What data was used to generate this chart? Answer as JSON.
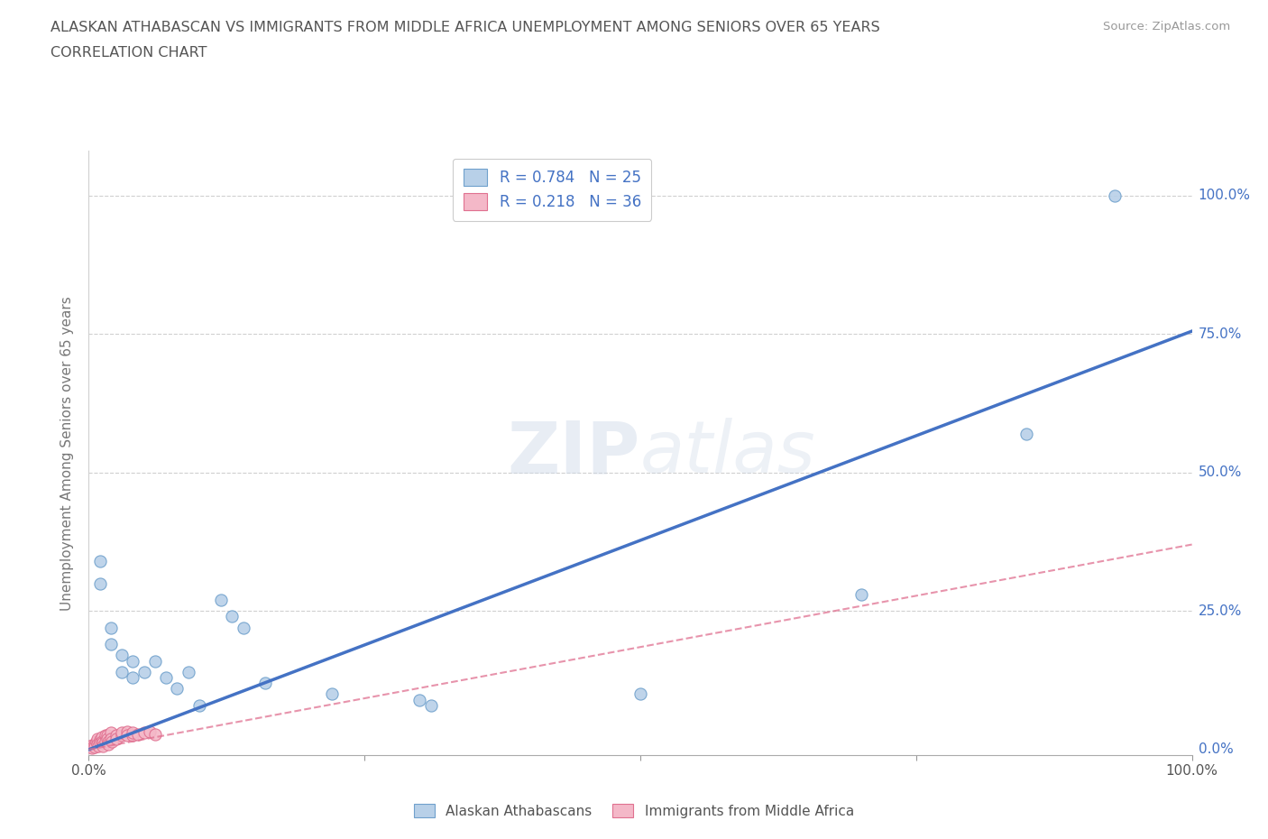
{
  "title_line1": "ALASKAN ATHABASCAN VS IMMIGRANTS FROM MIDDLE AFRICA UNEMPLOYMENT AMONG SENIORS OVER 65 YEARS",
  "title_line2": "CORRELATION CHART",
  "source_text": "Source: ZipAtlas.com",
  "ylabel": "Unemployment Among Seniors over 65 years",
  "watermark": "ZIPatlas",
  "blue_R": 0.784,
  "blue_N": 25,
  "pink_R": 0.218,
  "pink_N": 36,
  "blue_color": "#b8d0e8",
  "blue_edge_color": "#6fa0cc",
  "blue_line_color": "#4472c4",
  "pink_color": "#f4b8c8",
  "pink_edge_color": "#e07090",
  "pink_line_color": "#e07090",
  "blue_scatter": [
    [
      0.01,
      0.34
    ],
    [
      0.01,
      0.3
    ],
    [
      0.02,
      0.22
    ],
    [
      0.02,
      0.19
    ],
    [
      0.03,
      0.17
    ],
    [
      0.03,
      0.14
    ],
    [
      0.04,
      0.16
    ],
    [
      0.04,
      0.13
    ],
    [
      0.05,
      0.14
    ],
    [
      0.06,
      0.16
    ],
    [
      0.07,
      0.13
    ],
    [
      0.08,
      0.11
    ],
    [
      0.09,
      0.14
    ],
    [
      0.1,
      0.08
    ],
    [
      0.12,
      0.27
    ],
    [
      0.13,
      0.24
    ],
    [
      0.14,
      0.22
    ],
    [
      0.16,
      0.12
    ],
    [
      0.22,
      0.1
    ],
    [
      0.3,
      0.09
    ],
    [
      0.31,
      0.08
    ],
    [
      0.5,
      0.1
    ],
    [
      0.7,
      0.28
    ],
    [
      0.85,
      0.57
    ],
    [
      0.93,
      1.0
    ]
  ],
  "pink_scatter": [
    [
      0.002,
      0.005
    ],
    [
      0.003,
      0.008
    ],
    [
      0.003,
      0.003
    ],
    [
      0.005,
      0.01
    ],
    [
      0.005,
      0.005
    ],
    [
      0.007,
      0.015
    ],
    [
      0.008,
      0.02
    ],
    [
      0.008,
      0.01
    ],
    [
      0.009,
      0.007
    ],
    [
      0.01,
      0.018
    ],
    [
      0.01,
      0.012
    ],
    [
      0.012,
      0.022
    ],
    [
      0.012,
      0.015
    ],
    [
      0.013,
      0.012
    ],
    [
      0.013,
      0.007
    ],
    [
      0.015,
      0.025
    ],
    [
      0.015,
      0.015
    ],
    [
      0.017,
      0.025
    ],
    [
      0.017,
      0.02
    ],
    [
      0.018,
      0.015
    ],
    [
      0.018,
      0.01
    ],
    [
      0.02,
      0.03
    ],
    [
      0.02,
      0.02
    ],
    [
      0.021,
      0.015
    ],
    [
      0.025,
      0.025
    ],
    [
      0.025,
      0.02
    ],
    [
      0.03,
      0.025
    ],
    [
      0.03,
      0.03
    ],
    [
      0.035,
      0.033
    ],
    [
      0.035,
      0.025
    ],
    [
      0.04,
      0.025
    ],
    [
      0.04,
      0.03
    ],
    [
      0.045,
      0.028
    ],
    [
      0.05,
      0.03
    ],
    [
      0.055,
      0.033
    ],
    [
      0.06,
      0.028
    ]
  ],
  "blue_regline": [
    0.0,
    1.0,
    0.0,
    0.755
  ],
  "pink_regline": [
    0.0,
    1.0,
    0.0,
    0.37
  ],
  "xlim": [
    0,
    1.0
  ],
  "ylim": [
    -0.01,
    1.08
  ],
  "ytick_positions": [
    0.0,
    0.25,
    0.5,
    0.75,
    1.0
  ],
  "ytick_labels": [
    "0.0%",
    "25.0%",
    "50.0%",
    "75.0%",
    "100.0%"
  ],
  "xtick_positions": [
    0.0,
    0.25,
    0.5,
    0.75,
    1.0
  ],
  "xtick_labels": [
    "0.0%",
    "",
    "",
    "",
    "100.0%"
  ],
  "grid_color": "#d0d0d0",
  "background_color": "#ffffff",
  "title_color": "#555555",
  "axis_label_color": "#777777",
  "tick_label_color_right": "#4472c4",
  "tick_label_color_bottom": "#555555",
  "source_color": "#999999"
}
